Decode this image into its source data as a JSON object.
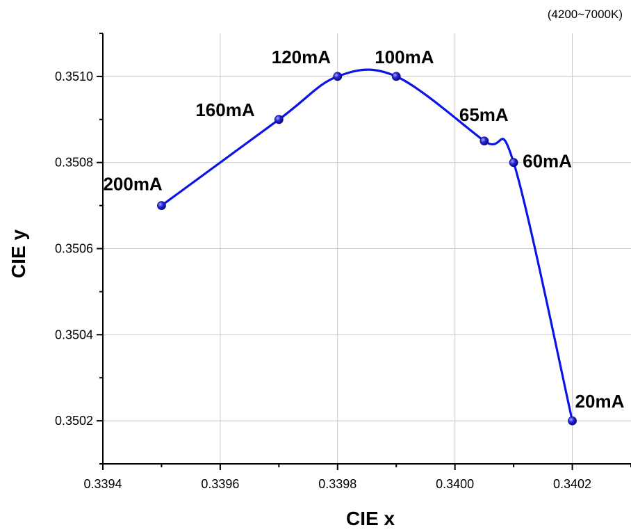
{
  "chart_data": {
    "type": "line",
    "title": "",
    "note": "(4200~7000K)",
    "xlabel": "CIE x",
    "ylabel": "CIE y",
    "xlim": [
      0.3394,
      0.3403
    ],
    "ylim": [
      0.3501,
      0.3511
    ],
    "x_ticks": [
      0.3394,
      0.3396,
      0.3398,
      0.34,
      0.3402
    ],
    "x_tick_labels": [
      "0.3394",
      "0.3396",
      "0.3398",
      "0.3400",
      "0.3402"
    ],
    "y_ticks": [
      0.3502,
      0.3504,
      0.3506,
      0.3508,
      0.351
    ],
    "y_tick_labels": [
      "0.3502",
      "0.3504",
      "0.3506",
      "0.3508",
      "0.3510"
    ],
    "grid": true,
    "smooth": true,
    "line_color": "#0a14e6",
    "marker_color": "#1a1ad0",
    "series": [
      {
        "points": [
          {
            "x": 0.3395,
            "y": 0.3507,
            "label": "200mA"
          },
          {
            "x": 0.3397,
            "y": 0.3509,
            "label": "160mA"
          },
          {
            "x": 0.3398,
            "y": 0.351,
            "label": "120mA"
          },
          {
            "x": 0.3399,
            "y": 0.351,
            "label": "100mA"
          },
          {
            "x": 0.34005,
            "y": 0.35085,
            "label": "65mA"
          },
          {
            "x": 0.3401,
            "y": 0.3508,
            "label": "60mA"
          },
          {
            "x": 0.3402,
            "y": 0.3502,
            "label": "20mA"
          }
        ]
      }
    ]
  }
}
